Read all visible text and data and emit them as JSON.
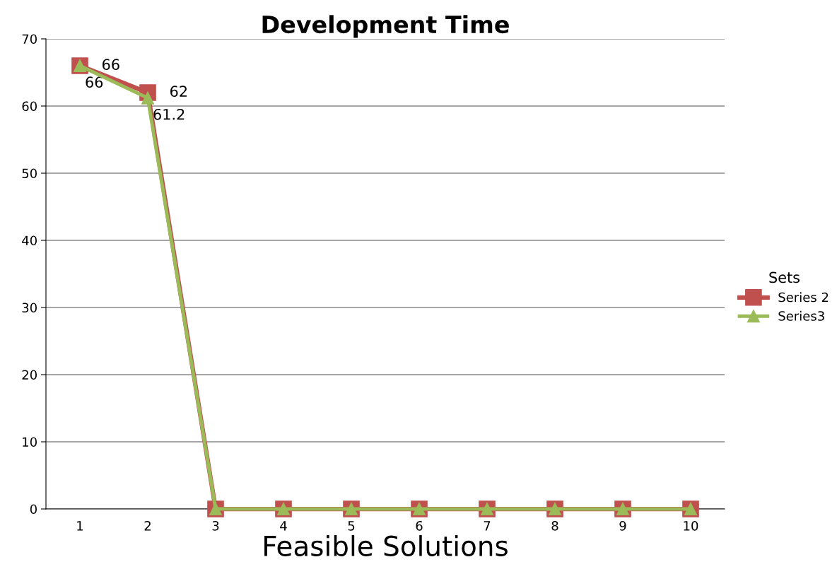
{
  "chart_data": {
    "type": "line",
    "title": "Development Time",
    "xlabel": "Feasible Solutions",
    "legend_title": "Sets",
    "categories": [
      "1",
      "2",
      "3",
      "4",
      "5",
      "6",
      "7",
      "8",
      "9",
      "10"
    ],
    "series": [
      {
        "name": "Series 2",
        "color": "#c0504d",
        "marker": "square",
        "values": [
          66,
          62,
          0,
          0,
          0,
          0,
          0,
          0,
          0,
          0
        ],
        "value_labels": [
          "66",
          "62",
          null,
          null,
          null,
          null,
          null,
          null,
          null,
          null
        ]
      },
      {
        "name": "Series3",
        "color": "#9bbb59",
        "marker": "triangle",
        "values": [
          66,
          61.2,
          0,
          0,
          0,
          0,
          0,
          0,
          0,
          0
        ],
        "value_labels": [
          "66",
          "61.2",
          null,
          null,
          null,
          null,
          null,
          null,
          null,
          null
        ]
      }
    ],
    "ylim": [
      0,
      70
    ],
    "yticks": [
      0,
      10,
      20,
      30,
      40,
      50,
      60,
      70
    ],
    "grid": "y",
    "legend": "right"
  }
}
